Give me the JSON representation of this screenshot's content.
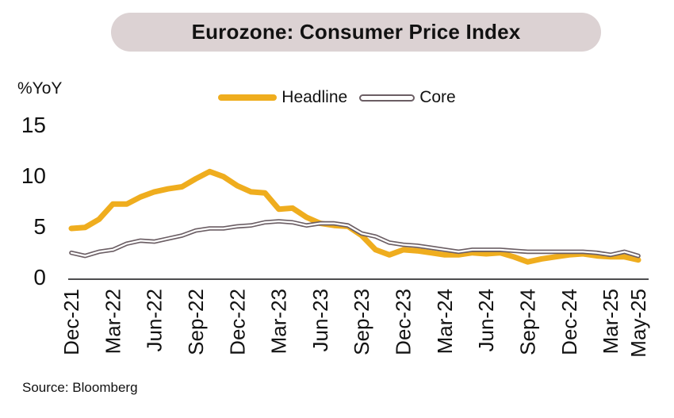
{
  "header": {
    "title": "Eurozone: Consumer Price Index"
  },
  "axis": {
    "y_unit_label": "%YoY"
  },
  "legend": {
    "headline_label": "Headline",
    "core_label": "Core"
  },
  "footer": {
    "source": "Source: Bloomberg"
  },
  "colors": {
    "headline_line": "#EFAD1E",
    "core_line_outline": "#6B5E64",
    "core_line_inner": "#FFFFFF",
    "axis_line": "#4D4D4F",
    "title_pill_bg": "#DCD2D3",
    "text": "#121212"
  },
  "chart_data": {
    "type": "line",
    "title": "Eurozone: Consumer Price Index",
    "ylabel": "%YoY",
    "xlabel": "",
    "ylim": [
      0,
      15
    ],
    "yticks": [
      0,
      5,
      10,
      15
    ],
    "grid": false,
    "legend_position": "top",
    "x": [
      "Dec-21",
      "Jan-22",
      "Feb-22",
      "Mar-22",
      "Apr-22",
      "May-22",
      "Jun-22",
      "Jul-22",
      "Aug-22",
      "Sep-22",
      "Oct-22",
      "Nov-22",
      "Dec-22",
      "Jan-23",
      "Feb-23",
      "Mar-23",
      "Apr-23",
      "May-23",
      "Jun-23",
      "Jul-23",
      "Aug-23",
      "Sep-23",
      "Oct-23",
      "Nov-23",
      "Dec-23",
      "Jan-24",
      "Feb-24",
      "Mar-24",
      "Apr-24",
      "May-24",
      "Jun-24",
      "Jul-24",
      "Aug-24",
      "Sep-24",
      "Oct-24",
      "Nov-24",
      "Dec-24",
      "Jan-25",
      "Feb-25",
      "Mar-25",
      "Apr-25",
      "May-25"
    ],
    "x_tick_indices": [
      0,
      3,
      6,
      9,
      12,
      15,
      18,
      21,
      24,
      27,
      30,
      33,
      36,
      39,
      41
    ],
    "x_ticklabels": [
      "Dec-21",
      "Mar-22",
      "Jun-22",
      "Sep-22",
      "Dec-22",
      "Mar-23",
      "Jun-23",
      "Sep-23",
      "Dec-23",
      "Mar-24",
      "Jun-24",
      "Sep-24",
      "Dec-24",
      "Mar-25",
      "May-25"
    ],
    "series": [
      {
        "name": "Headline",
        "color": "#EFAD1E",
        "values": [
          5.0,
          5.1,
          5.9,
          7.4,
          7.4,
          8.1,
          8.6,
          8.9,
          9.1,
          9.9,
          10.6,
          10.1,
          9.2,
          8.6,
          8.5,
          6.9,
          7.0,
          6.1,
          5.5,
          5.3,
          5.2,
          4.3,
          2.9,
          2.4,
          2.9,
          2.8,
          2.6,
          2.4,
          2.4,
          2.6,
          2.5,
          2.6,
          2.2,
          1.7,
          2.0,
          2.2,
          2.4,
          2.5,
          2.3,
          2.2,
          2.2,
          1.9
        ]
      },
      {
        "name": "Core",
        "color": "#6B5E64",
        "values": [
          2.6,
          2.3,
          2.7,
          2.9,
          3.5,
          3.8,
          3.7,
          4.0,
          4.3,
          4.8,
          5.0,
          5.0,
          5.2,
          5.3,
          5.6,
          5.7,
          5.6,
          5.3,
          5.5,
          5.5,
          5.3,
          4.5,
          4.2,
          3.6,
          3.4,
          3.3,
          3.1,
          2.9,
          2.7,
          2.9,
          2.9,
          2.9,
          2.8,
          2.7,
          2.7,
          2.7,
          2.7,
          2.7,
          2.6,
          2.4,
          2.7,
          2.3
        ]
      }
    ]
  }
}
